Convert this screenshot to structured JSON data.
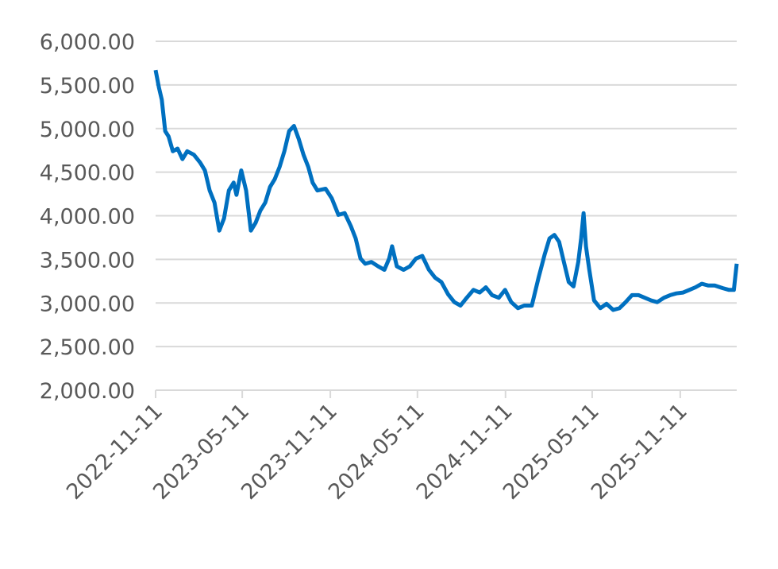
{
  "chart_data": {
    "type": "line",
    "x": [
      "2022-11-11",
      "2022-11-18",
      "2022-11-24",
      "2022-12-01",
      "2022-12-08",
      "2022-12-17",
      "2022-12-27",
      "2023-01-06",
      "2023-01-16",
      "2023-01-30",
      "2023-02-12",
      "2023-02-22",
      "2023-03-04",
      "2023-03-14",
      "2023-03-24",
      "2023-04-03",
      "2023-04-13",
      "2023-04-23",
      "2023-04-29",
      "2023-05-09",
      "2023-05-19",
      "2023-05-29",
      "2023-06-08",
      "2023-06-18",
      "2023-06-28",
      "2023-07-08",
      "2023-07-18",
      "2023-07-28",
      "2023-08-07",
      "2023-08-17",
      "2023-08-27",
      "2023-09-06",
      "2023-09-16",
      "2023-09-26",
      "2023-10-05",
      "2023-10-15",
      "2023-11-01",
      "2023-11-14",
      "2023-11-28",
      "2023-12-11",
      "2023-12-24",
      "2024-01-03",
      "2024-01-13",
      "2024-01-23",
      "2024-02-05",
      "2024-02-19",
      "2024-03-03",
      "2024-03-13",
      "2024-03-19",
      "2024-03-29",
      "2024-04-12",
      "2024-04-25",
      "2024-05-08",
      "2024-05-21",
      "2024-06-04",
      "2024-06-17",
      "2024-06-30",
      "2024-07-14",
      "2024-07-27",
      "2024-08-09",
      "2024-08-22",
      "2024-09-05",
      "2024-09-18",
      "2024-10-01",
      "2024-10-14",
      "2024-10-28",
      "2024-11-10",
      "2024-11-23",
      "2024-12-07",
      "2024-12-20",
      "2025-01-05",
      "2025-01-19",
      "2025-02-01",
      "2025-02-11",
      "2025-02-21",
      "2025-03-03",
      "2025-03-13",
      "2025-03-23",
      "2025-04-02",
      "2025-04-12",
      "2025-04-18",
      "2025-04-23",
      "2025-04-28",
      "2025-05-05",
      "2025-05-15",
      "2025-05-28",
      "2025-06-10",
      "2025-06-24",
      "2025-07-07",
      "2025-07-20",
      "2025-08-02",
      "2025-08-16",
      "2025-08-29",
      "2025-09-11",
      "2025-09-24",
      "2025-10-08",
      "2025-10-21",
      "2025-11-03",
      "2025-11-17",
      "2025-11-30",
      "2025-12-13",
      "2025-12-26",
      "2026-01-09",
      "2026-01-22",
      "2026-02-08",
      "2026-02-21",
      "2026-03-03",
      "2026-03-09"
    ],
    "series": [
      {
        "color": "#0070c0",
        "values": [
          5670,
          5470,
          5330,
          4970,
          4910,
          4740,
          4770,
          4650,
          4740,
          4700,
          4610,
          4520,
          4290,
          4150,
          3830,
          3970,
          4290,
          4380,
          4240,
          4520,
          4290,
          3830,
          3920,
          4060,
          4150,
          4330,
          4420,
          4560,
          4740,
          4970,
          5030,
          4880,
          4700,
          4560,
          4380,
          4290,
          4310,
          4200,
          4010,
          4030,
          3880,
          3740,
          3510,
          3450,
          3470,
          3420,
          3380,
          3510,
          3650,
          3420,
          3380,
          3420,
          3510,
          3540,
          3380,
          3290,
          3240,
          3100,
          3010,
          2970,
          3060,
          3150,
          3120,
          3180,
          3090,
          3060,
          3150,
          3010,
          2940,
          2970,
          2970,
          3290,
          3560,
          3740,
          3780,
          3700,
          3470,
          3240,
          3190,
          3470,
          3740,
          4030,
          3650,
          3380,
          3030,
          2940,
          2990,
          2920,
          2940,
          3010,
          3090,
          3090,
          3060,
          3030,
          3010,
          3060,
          3090,
          3110,
          3120,
          3150,
          3180,
          3220,
          3200,
          3200,
          3170,
          3150,
          3150,
          3450
        ]
      }
    ],
    "xlim": [
      "2022-11-11",
      "2026-03-09"
    ],
    "xticks": [
      "2022-11-11",
      "2023-05-11",
      "2023-11-11",
      "2024-05-11",
      "2024-11-11",
      "2025-05-11",
      "2025-11-11"
    ],
    "ylim": [
      2000,
      6000
    ],
    "yticks": [
      {
        "value": 2000,
        "label": "2,000.00"
      },
      {
        "value": 2500,
        "label": "2,500.00"
      },
      {
        "value": 3000,
        "label": "3,000.00"
      },
      {
        "value": 3500,
        "label": "3,500.00"
      },
      {
        "value": 4000,
        "label": "4,000.00"
      },
      {
        "value": 4500,
        "label": "4,500.00"
      },
      {
        "value": 5000,
        "label": "5,000.00"
      },
      {
        "value": 5500,
        "label": "5,500.00"
      },
      {
        "value": 6000,
        "label": "6,000.00"
      }
    ],
    "grid": true
  }
}
